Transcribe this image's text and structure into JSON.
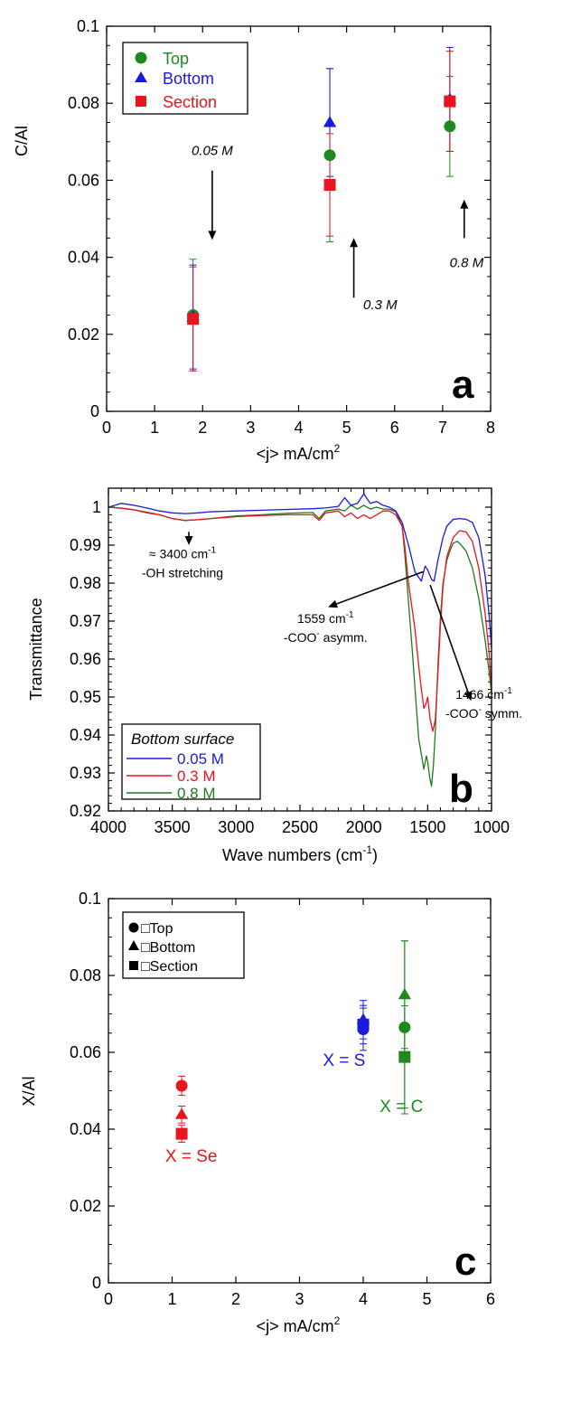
{
  "chart_data": [
    {
      "panel": "a",
      "type": "scatter",
      "xlabel": "<j> mA/cm",
      "xlabel_sup": "2",
      "ylabel": "C/Al",
      "xlim": [
        0,
        8
      ],
      "ylim": [
        0,
        0.1
      ],
      "xticks": [
        "0",
        "1",
        "2",
        "3",
        "4",
        "5",
        "6",
        "7",
        "8"
      ],
      "yticks": [
        "0",
        "0.02",
        "0.04",
        "0.06",
        "0.08",
        "0.1"
      ],
      "legend_position": "top-left",
      "series": [
        {
          "name": "Top",
          "color": "#1e8a1e",
          "marker": "circle",
          "x": [
            1.8,
            4.65,
            7.15
          ],
          "y": [
            0.025,
            0.0665,
            0.074
          ],
          "err": [
            0.0145,
            0.0225,
            0.013
          ]
        },
        {
          "name": "Bottom",
          "color": "#1a1adb",
          "marker": "triangle",
          "x": [
            1.8,
            4.65,
            7.15
          ],
          "y": [
            0.0245,
            0.075,
            0.081
          ],
          "err": [
            0.0135,
            0.014,
            0.0135
          ]
        },
        {
          "name": "Section",
          "color": "#e8141e",
          "marker": "square",
          "x": [
            1.8,
            4.65,
            7.15
          ],
          "y": [
            0.024,
            0.0588,
            0.0805
          ],
          "err": [
            0.0135,
            0.0133,
            0.013
          ]
        }
      ],
      "annotations": [
        {
          "text": "0.05 M",
          "x": 2.2,
          "y": 0.0665,
          "arrow_from": [
            2.2,
            0.0625
          ],
          "arrow_to": [
            2.2,
            0.0445
          ]
        },
        {
          "text": "0.3 M",
          "x": 5.7,
          "y": 0.0265,
          "arrow_from": [
            5.15,
            0.0295
          ],
          "arrow_to": [
            5.15,
            0.045
          ]
        },
        {
          "text": "0.8 M",
          "x": 7.5,
          "y": 0.0375,
          "arrow_from": [
            7.45,
            0.045
          ],
          "arrow_to": [
            7.45,
            0.055
          ]
        }
      ],
      "panel_label": "a"
    },
    {
      "panel": "b",
      "type": "line",
      "xlabel": "Wave numbers (cm",
      "xlabel_sup": "-1",
      "xlabel_end": ")",
      "ylabel": "Transmittance",
      "xlim": [
        4000,
        1000
      ],
      "ylim": [
        0.92,
        1.005
      ],
      "xticks": [
        "4000",
        "3500",
        "3000",
        "2500",
        "2000",
        "1500",
        "1000"
      ],
      "yticks": [
        "0.92",
        "0.93",
        "0.94",
        "0.95",
        "0.96",
        "0.97",
        "0.98",
        "0.99",
        "1"
      ],
      "legend_title": "Bottom surface",
      "legend_position": "bottom-left",
      "series": [
        {
          "name": "0.05 M",
          "color": "#1a1adb",
          "x": [
            4000,
            3900,
            3800,
            3700,
            3600,
            3500,
            3400,
            3300,
            3200,
            3000,
            2800,
            2600,
            2400,
            2300,
            2200,
            2150,
            2100,
            2050,
            2000,
            1950,
            1900,
            1850,
            1800,
            1750,
            1700,
            1650,
            1600,
            1550,
            1520,
            1500,
            1470,
            1450,
            1420,
            1380,
            1350,
            1300,
            1250,
            1200,
            1150,
            1100,
            1050,
            1020,
            1000
          ],
          "y": [
            1.0,
            1.001,
            1.0005,
            0.9998,
            0.999,
            0.9985,
            0.9983,
            0.9985,
            0.9988,
            0.999,
            0.9992,
            0.9994,
            0.9996,
            0.9998,
            1.0002,
            1.0025,
            1.0005,
            1.001,
            1.0035,
            1.001,
            1.0015,
            1.0005,
            1.0,
            0.999,
            0.996,
            0.99,
            0.983,
            0.9805,
            0.9845,
            0.9835,
            0.981,
            0.9805,
            0.986,
            0.992,
            0.995,
            0.9968,
            0.997,
            0.9968,
            0.996,
            0.992,
            0.982,
            0.972,
            0.963
          ]
        },
        {
          "name": "0.3 M",
          "color": "#e8141e",
          "x": [
            4000,
            3900,
            3800,
            3700,
            3600,
            3500,
            3400,
            3300,
            3200,
            3000,
            2800,
            2600,
            2400,
            2350,
            2300,
            2200,
            2150,
            2100,
            2050,
            2000,
            1950,
            1900,
            1850,
            1800,
            1750,
            1700,
            1680,
            1650,
            1600,
            1560,
            1530,
            1510,
            1500,
            1480,
            1460,
            1440,
            1420,
            1400,
            1380,
            1350,
            1300,
            1250,
            1200,
            1150,
            1100,
            1050,
            1020,
            1000
          ],
          "y": [
            1.0,
            0.9998,
            0.9993,
            0.9985,
            0.998,
            0.997,
            0.9965,
            0.9967,
            0.997,
            0.9975,
            0.9978,
            0.998,
            0.998,
            0.9965,
            0.9985,
            0.999,
            0.9975,
            0.9985,
            0.997,
            0.998,
            0.997,
            0.998,
            0.999,
            0.999,
            0.998,
            0.995,
            0.99,
            0.98,
            0.968,
            0.955,
            0.947,
            0.9485,
            0.95,
            0.944,
            0.941,
            0.944,
            0.956,
            0.969,
            0.979,
            0.987,
            0.992,
            0.9938,
            0.9935,
            0.991,
            0.984,
            0.972,
            0.962,
            0.952
          ]
        },
        {
          "name": "0.8 M",
          "color": "#1e7a1e",
          "x": [
            4000,
            3900,
            3800,
            3700,
            3600,
            3500,
            3400,
            3300,
            3200,
            3000,
            2800,
            2600,
            2400,
            2350,
            2300,
            2200,
            2150,
            2100,
            2050,
            2000,
            1950,
            1900,
            1850,
            1800,
            1750,
            1700,
            1680,
            1650,
            1620,
            1590,
            1570,
            1550,
            1530,
            1510,
            1500,
            1485,
            1470,
            1455,
            1440,
            1420,
            1400,
            1380,
            1350,
            1320,
            1300,
            1270,
            1250,
            1200,
            1150,
            1100,
            1050,
            1020,
            1000
          ],
          "y": [
            1.0,
            0.9997,
            0.9993,
            0.9987,
            0.998,
            0.997,
            0.9965,
            0.9967,
            0.997,
            0.9977,
            0.998,
            0.9984,
            0.9986,
            0.997,
            0.999,
            0.9995,
            0.999,
            1.0005,
            0.9995,
            1.0005,
            0.9995,
            1.0,
            0.9995,
            0.9995,
            0.9988,
            0.995,
            0.988,
            0.975,
            0.962,
            0.948,
            0.939,
            0.935,
            0.931,
            0.9345,
            0.933,
            0.929,
            0.9265,
            0.932,
            0.941,
            0.958,
            0.971,
            0.98,
            0.986,
            0.989,
            0.9905,
            0.991,
            0.9905,
            0.9885,
            0.984,
            0.976,
            0.965,
            0.957,
            0.951
          ]
        }
      ],
      "annotations": [
        {
          "line1": "≈ 3400 cm",
          "sup": "-1",
          "line1_end": "",
          "line2": "-OH stretching",
          "arrow_from": [
            3370,
            0.9935
          ],
          "arrow_to": [
            3370,
            0.99
          ],
          "text_x": 3420,
          "text_y": 0.9865,
          "line2_y": 0.9815
        },
        {
          "line1": "1559 cm",
          "sup": "-1",
          "line1_end": "",
          "line2": "-COO",
          "line2_sup": "-",
          "line2_end": " asymm.",
          "arrow_from": [
            1535,
            0.983
          ],
          "arrow_to": [
            2280,
            0.9737
          ],
          "text_x": 2300,
          "text_y": 0.9695,
          "line2_y": 0.9645
        },
        {
          "line1": "1466 cm",
          "sup": "-1",
          "line1_end": "",
          "line2": "-COO",
          "line2_sup": "-",
          "line2_end": " symm.",
          "arrow_from": [
            1480,
            0.9795
          ],
          "arrow_to": [
            1160,
            0.949
          ],
          "text_x": 1060,
          "text_y": 0.9495,
          "line2_y": 0.9445
        }
      ],
      "panel_label": "b"
    },
    {
      "panel": "c",
      "type": "scatter",
      "xlabel": "<j> mA/cm",
      "xlabel_sup": "2",
      "ylabel": "X/Al",
      "xlim": [
        0,
        6
      ],
      "ylim": [
        0,
        0.1
      ],
      "xticks": [
        "0",
        "1",
        "2",
        "3",
        "4",
        "5",
        "6"
      ],
      "yticks": [
        "0",
        "0.02",
        "0.04",
        "0.06",
        "0.08",
        "0.1"
      ],
      "legend_position": "top-left",
      "legend": [
        {
          "name": "□Top",
          "marker": "circle"
        },
        {
          "name": "□Bottom",
          "marker": "triangle"
        },
        {
          "name": "□Section",
          "marker": "square"
        }
      ],
      "groups": [
        {
          "label": "X = Se",
          "color": "#e8141e",
          "label_x": 1.3,
          "label_y": 0.0315,
          "points": [
            {
              "marker": "circle",
              "x": 1.15,
              "y": 0.0513,
              "err": 0.0025
            },
            {
              "marker": "triangle",
              "x": 1.15,
              "y": 0.0438,
              "err": 0.0022
            },
            {
              "marker": "square",
              "x": 1.15,
              "y": 0.0388,
              "err": 0.0022
            }
          ]
        },
        {
          "label": "X = S",
          "color": "#1a1adb",
          "label_x": 3.7,
          "label_y": 0.0565,
          "points": [
            {
              "marker": "circle",
              "x": 4.0,
              "y": 0.066,
              "err": 0.0055
            },
            {
              "marker": "triangle",
              "x": 4.0,
              "y": 0.0685,
              "err": 0.005
            },
            {
              "marker": "square",
              "x": 4.0,
              "y": 0.0672,
              "err": 0.005
            }
          ]
        },
        {
          "label": "X = C",
          "color": "#1e8a1e",
          "label_x": 4.6,
          "label_y": 0.0445,
          "points": [
            {
              "marker": "circle",
              "x": 4.65,
              "y": 0.0665,
              "err": 0.0225
            },
            {
              "marker": "triangle",
              "x": 4.65,
              "y": 0.075,
              "err": 0.014
            },
            {
              "marker": "square",
              "x": 4.65,
              "y": 0.0588,
              "err": 0.0133
            }
          ]
        }
      ],
      "panel_label": "c"
    }
  ]
}
